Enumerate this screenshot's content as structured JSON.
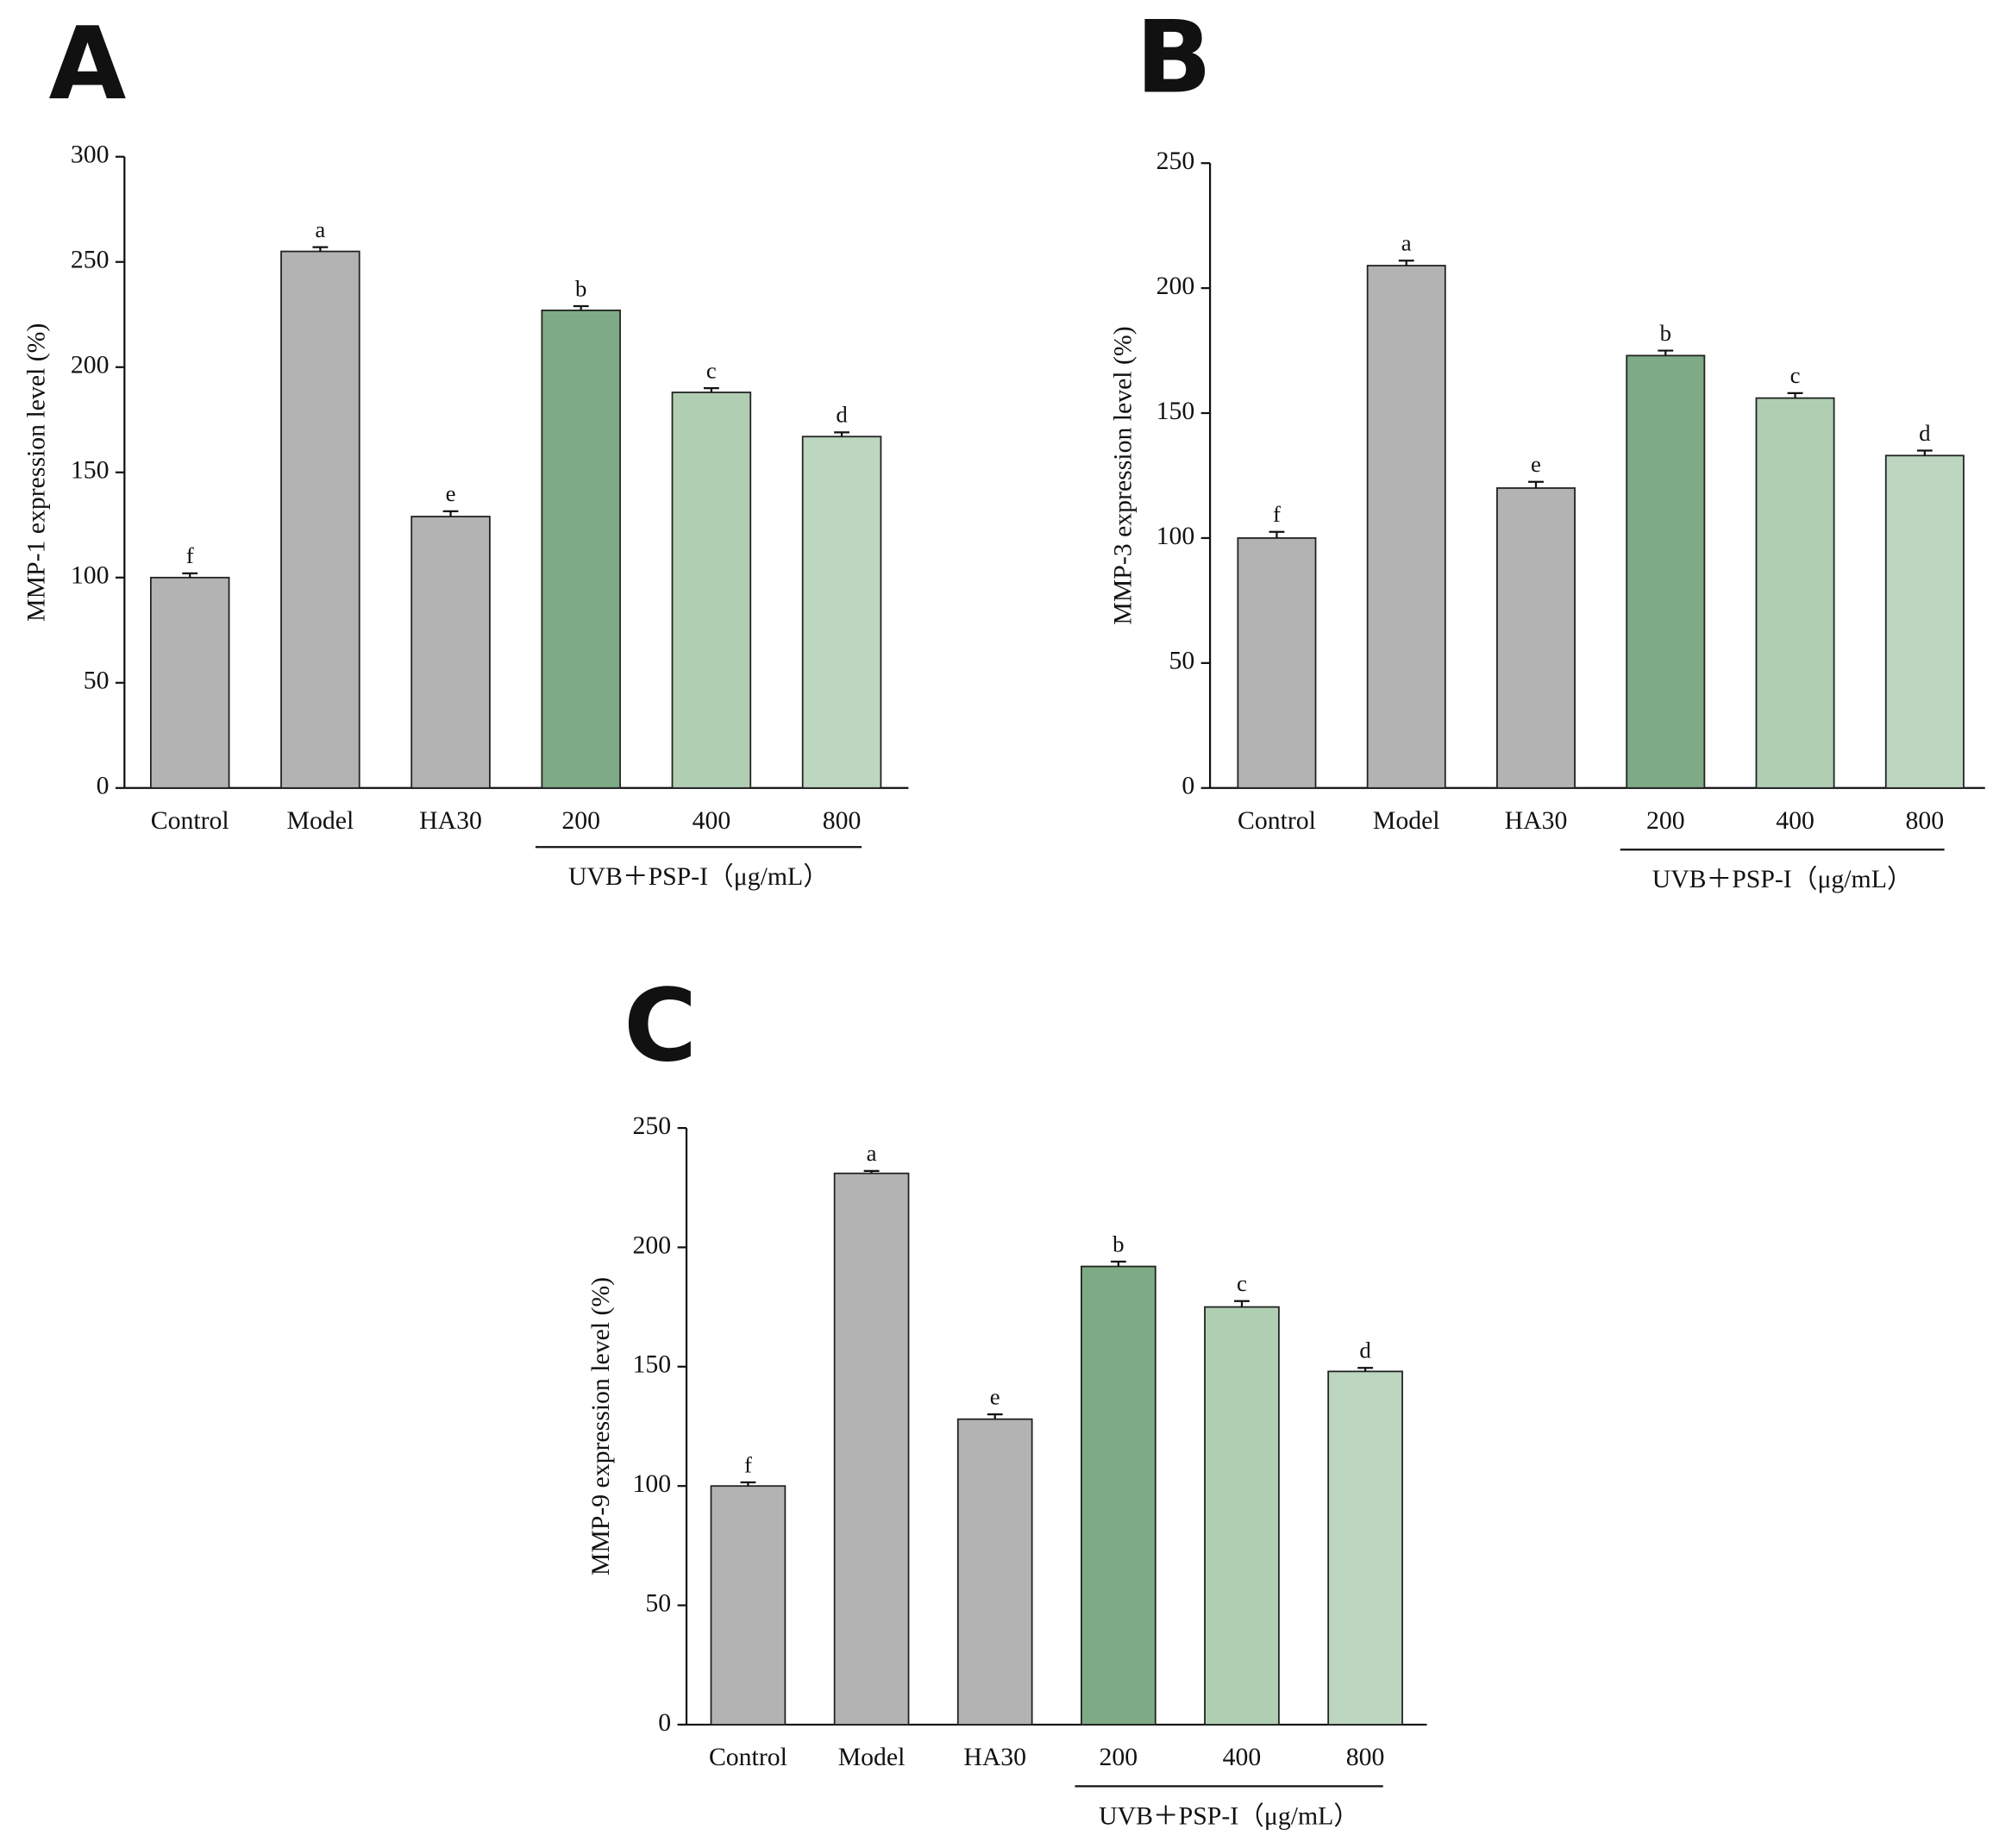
{
  "chart_data": [
    {
      "type": "bar",
      "panel": "A",
      "y_label": "MMP-1 expression level (%)",
      "categories": [
        "Control",
        "Model",
        "HA30",
        "200",
        "400",
        "800"
      ],
      "values": [
        100,
        255,
        129,
        227,
        188,
        167
      ],
      "errors": [
        2,
        2,
        2.5,
        2,
        2,
        2
      ],
      "annotations": [
        "f",
        "a",
        "e",
        "b",
        "c",
        "d"
      ],
      "colors": [
        "#b3b3b3",
        "#b3b3b3",
        "#b3b3b3",
        "#7eab85",
        "#b0cfb2",
        "#bcd6c0"
      ],
      "group_label": "UVB＋PSP-I（μg/mL）",
      "ylim": [
        0,
        300
      ],
      "yticks": [
        0,
        50,
        100,
        150,
        200,
        250,
        300
      ]
    },
    {
      "type": "bar",
      "panel": "B",
      "y_label": "MMP-3 expression level (%)",
      "categories": [
        "Control",
        "Model",
        "HA30",
        "200",
        "400",
        "800"
      ],
      "values": [
        100,
        209,
        120,
        173,
        156,
        133
      ],
      "errors": [
        2.5,
        2,
        2.5,
        2,
        2,
        2
      ],
      "annotations": [
        "f",
        "a",
        "e",
        "b",
        "c",
        "d"
      ],
      "colors": [
        "#b3b3b3",
        "#b3b3b3",
        "#b3b3b3",
        "#7eab85",
        "#b0cfb2",
        "#bcd6c0"
      ],
      "group_label": "UVB＋PSP-I（μg/mL）",
      "ylim": [
        0,
        250
      ],
      "yticks": [
        0,
        50,
        100,
        150,
        200,
        250
      ]
    },
    {
      "type": "bar",
      "panel": "C",
      "y_label": "MMP-9 expression level (%)",
      "categories": [
        "Control",
        "Model",
        "HA30",
        "200",
        "400",
        "800"
      ],
      "values": [
        100,
        231,
        128,
        192,
        175,
        148
      ],
      "errors": [
        1.5,
        1,
        2,
        2,
        2.5,
        1.5
      ],
      "annotations": [
        "f",
        "a",
        "e",
        "b",
        "c",
        "d"
      ],
      "colors": [
        "#b3b3b3",
        "#b3b3b3",
        "#b3b3b3",
        "#7eab85",
        "#b0cfb2",
        "#bcd6c0"
      ],
      "group_label": "UVB＋PSP-I（μg/mL）",
      "ylim": [
        0,
        250
      ],
      "yticks": [
        0,
        50,
        100,
        150,
        200,
        250
      ]
    }
  ]
}
